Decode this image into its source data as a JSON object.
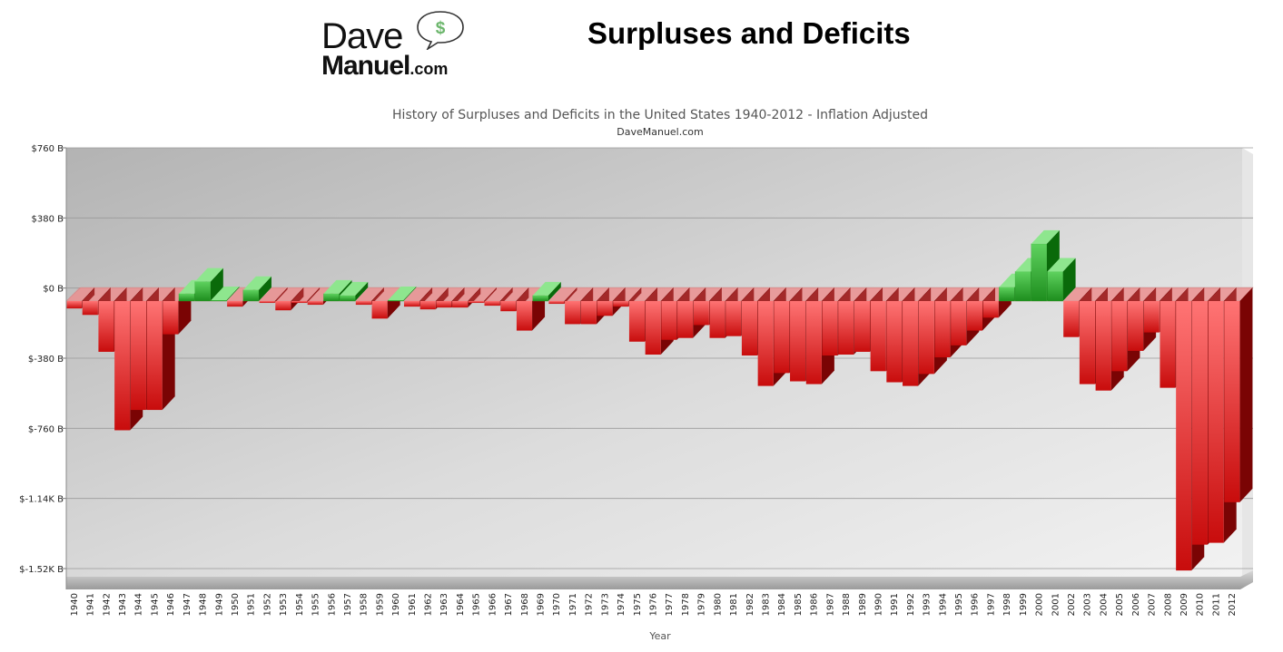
{
  "header": {
    "logo_dave": "Dave",
    "logo_manuel": "Manuel",
    "logo_com": ".com",
    "logo_dollar": "$",
    "title": "Surpluses and Deficits"
  },
  "colors": {
    "surplus": "#2ea32e",
    "deficit": "#e01818",
    "logo_dollar": "#6cb66c"
  },
  "chart_data": {
    "type": "bar",
    "title": "History of Surpluses and Deficits in the United States 1940-2012 - Inflation Adjusted",
    "subtitle": "DaveManuel.com",
    "xlabel": "Year",
    "ylabel": "",
    "unit": "billions of dollars (inflation adjusted)",
    "ylim": [
      -1520,
      760
    ],
    "ytick_values": [
      760,
      380,
      0,
      -380,
      -760,
      -1140,
      -1520
    ],
    "ytick_labels": [
      "$760 B",
      "$380 B",
      "$0 B",
      "$-380 B",
      "$-760 B",
      "$-1.14K B",
      "$-1.52K B"
    ],
    "grid": true,
    "categories": [
      "1940",
      "1941",
      "1942",
      "1943",
      "1944",
      "1945",
      "1946",
      "1947",
      "1948",
      "1949",
      "1950",
      "1951",
      "1952",
      "1953",
      "1954",
      "1955",
      "1956",
      "1957",
      "1958",
      "1959",
      "1960",
      "1961",
      "1962",
      "1963",
      "1964",
      "1965",
      "1966",
      "1967",
      "1968",
      "1969",
      "1970",
      "1971",
      "1972",
      "1973",
      "1974",
      "1975",
      "1976",
      "1977",
      "1978",
      "1979",
      "1980",
      "1981",
      "1982",
      "1983",
      "1984",
      "1985",
      "1986",
      "1987",
      "1988",
      "1989",
      "1990",
      "1991",
      "1992",
      "1993",
      "1994",
      "1995",
      "1996",
      "1997",
      "1998",
      "1999",
      "2000",
      "2001",
      "2002",
      "2003",
      "2004",
      "2005",
      "2006",
      "2007",
      "2008",
      "2009",
      "2010",
      "2011",
      "2012"
    ],
    "values": [
      -40,
      -75,
      -275,
      -700,
      -590,
      -590,
      -180,
      40,
      105,
      5,
      -30,
      60,
      -10,
      -50,
      -10,
      -20,
      40,
      30,
      -20,
      -95,
      5,
      -30,
      -45,
      -35,
      -35,
      -10,
      -25,
      -55,
      -160,
      30,
      -15,
      -125,
      -125,
      -80,
      -30,
      -220,
      -290,
      -210,
      -200,
      -130,
      -200,
      -190,
      -295,
      -460,
      -390,
      -435,
      -450,
      -295,
      -290,
      -275,
      -380,
      -440,
      -460,
      -395,
      -305,
      -240,
      -160,
      -90,
      75,
      160,
      310,
      160,
      -195,
      -450,
      -485,
      -380,
      -270,
      -170,
      -470,
      -1460,
      -1320,
      -1310,
      -1090
    ]
  }
}
